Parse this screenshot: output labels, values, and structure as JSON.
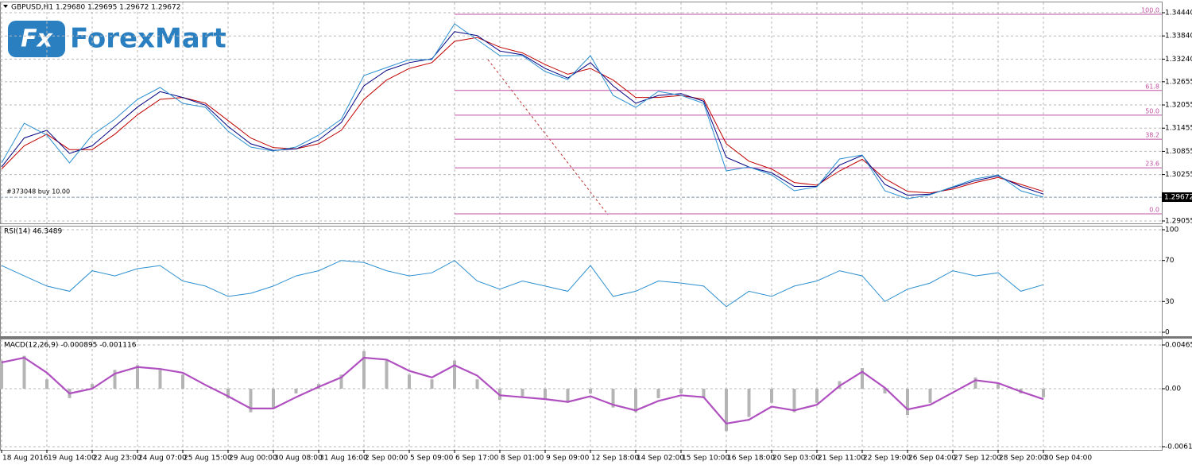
{
  "chart_data": [
    {
      "type": "line",
      "title": "GBPUSD,H1  1.29680 1.29695 1.29672 1.29672",
      "logo_icon": "Fx",
      "logo": "ForexMart",
      "series": [
        {
          "color": "#2b8fcf",
          "values": [
            1.30555,
            1.31583,
            1.31275,
            1.30555,
            1.31275,
            1.31686,
            1.322,
            1.32508,
            1.32097,
            1.31994,
            1.31377,
            1.30966,
            1.30863,
            1.30966,
            1.31275,
            1.31686,
            1.32816,
            1.33022,
            1.33227,
            1.33227,
            1.34152,
            1.33741,
            1.3333,
            1.3333,
            1.32919,
            1.32713,
            1.3333,
            1.32302,
            1.31994,
            1.32405,
            1.32302,
            1.32097,
            1.3035,
            1.30452,
            1.30247,
            1.29836,
            1.29938,
            1.30658,
            1.30761,
            1.29836,
            1.2963,
            1.29733,
            1.29938,
            1.30144,
            1.30247,
            1.29836,
            1.29672
          ]
        },
        {
          "color": "#000080",
          "values": [
            1.3045,
            1.312,
            1.314,
            1.308,
            1.31,
            1.315,
            1.32,
            1.324,
            1.3225,
            1.3205,
            1.315,
            1.3105,
            1.3088,
            1.3092,
            1.3115,
            1.316,
            1.3255,
            1.3295,
            1.3315,
            1.3325,
            1.3395,
            1.3385,
            1.3345,
            1.3335,
            1.33,
            1.3275,
            1.3315,
            1.3255,
            1.321,
            1.323,
            1.3235,
            1.3215,
            1.307,
            1.3045,
            1.303,
            1.2995,
            1.2995,
            1.305,
            1.3075,
            1.3,
            1.2972,
            1.2975,
            1.2992,
            1.301,
            1.3022,
            1.2995,
            1.2975
          ]
        },
        {
          "color": "#c00000",
          "values": [
            1.304,
            1.31,
            1.313,
            1.309,
            1.309,
            1.313,
            1.318,
            1.322,
            1.3225,
            1.321,
            1.3165,
            1.312,
            1.3095,
            1.3092,
            1.3105,
            1.314,
            1.322,
            1.327,
            1.33,
            1.3315,
            1.337,
            1.338,
            1.3355,
            1.334,
            1.331,
            1.3285,
            1.33,
            1.327,
            1.3225,
            1.3225,
            1.323,
            1.322,
            1.3105,
            1.306,
            1.304,
            1.3005,
            1.2998,
            1.3035,
            1.3065,
            1.3015,
            1.2982,
            1.2978,
            1.2988,
            1.3005,
            1.3018,
            1.3,
            1.2982
          ]
        }
      ],
      "ylim": [
        1.29055,
        1.3444
      ],
      "yticks": [
        {
          "value": 1.3444,
          "label": "1.34440"
        },
        {
          "value": 1.3384,
          "label": "1.33840"
        },
        {
          "value": 1.3324,
          "label": "1.33240"
        },
        1.32655,
        1.32055,
        1.31455,
        1.30855,
        1.30255,
        1.29055
      ],
      "grid": true,
      "fibonacci": {
        "color": "#c04fa0",
        "levels": [
          {
            "label": "100.0",
            "price": 1.344
          },
          {
            "label": "61.8",
            "price": 1.3243
          },
          {
            "label": "50.0",
            "price": 1.3179
          },
          {
            "label": "38.2",
            "price": 1.3117
          },
          {
            "label": "23.6",
            "price": 1.3043
          },
          {
            "label": "0.0",
            "price": 1.2924
          }
        ]
      },
      "order": {
        "label": "#373048 buy 10.00",
        "price": 1.2967
      },
      "last_price": 1.29672
    },
    {
      "type": "line",
      "title": "RSI(14) 46.3489",
      "series": [
        {
          "color": "#2b8fcf",
          "values": [
            65,
            55,
            45,
            40,
            60,
            55,
            62,
            65,
            50,
            45,
            35,
            38,
            45,
            55,
            60,
            70,
            68,
            60,
            55,
            58,
            70,
            50,
            42,
            50,
            45,
            40,
            65,
            35,
            40,
            50,
            48,
            45,
            25,
            40,
            35,
            45,
            50,
            60,
            55,
            30,
            42,
            48,
            60,
            55,
            58,
            40,
            46.3489
          ]
        }
      ],
      "ylim": [
        0,
        100
      ],
      "yticks": [
        0,
        30,
        70,
        100
      ],
      "grid": true
    },
    {
      "type": "bar",
      "title": "MACD(12,26,9) -0.000895 -0.001116",
      "categories": [
        "18 Aug 2016",
        null,
        "19 Aug 14:00",
        null,
        "22 Aug 23:00",
        null,
        "24 Aug 07:00",
        null,
        "25 Aug 15:00",
        null,
        "29 Aug 00:00",
        null,
        "30 Aug 08:00",
        null,
        "31 Aug 16:00",
        null,
        "2 Sep 00:00",
        null,
        "5 Sep 09:00",
        null,
        "6 Sep 17:00",
        null,
        "8 Sep 01:00",
        null,
        "9 Sep 09:00",
        null,
        "12 Sep 18:00",
        null,
        "14 Sep 02:00",
        null,
        "15 Sep 10:00",
        null,
        "16 Sep 18:00",
        null,
        "20 Sep 03:00",
        null,
        "21 Sep 11:00",
        null,
        "22 Sep 19:00",
        null,
        "26 Sep 04:00",
        null,
        "27 Sep 12:00",
        null,
        "28 Sep 20:00",
        null,
        "30 Sep 04:00"
      ],
      "series": [
        {
          "color": "#b4b4b4",
          "style": "bar",
          "values": [
            0.003,
            0.0035,
            0.001,
            -0.001,
            0.0005,
            0.002,
            0.0025,
            0.002,
            0.0015,
            0.0,
            -0.001,
            -0.0025,
            -0.002,
            -0.0005,
            0.0005,
            0.0015,
            0.004,
            0.003,
            0.0015,
            0.001,
            0.003,
            0.001,
            -0.0012,
            -0.0008,
            -0.0012,
            -0.0015,
            -0.0005,
            -0.002,
            -0.0025,
            -0.001,
            -0.0005,
            -0.001,
            -0.0045,
            -0.003,
            -0.0015,
            -0.0025,
            -0.0015,
            0.0008,
            0.0022,
            -0.0005,
            -0.0028,
            -0.0015,
            0.0,
            0.0012,
            0.0005,
            -0.0005,
            -0.000895
          ]
        },
        {
          "color": "#b050c0",
          "style": "line",
          "values": [
            0.0028,
            0.0033,
            0.0017,
            -0.0005,
            0.0,
            0.0016,
            0.0023,
            0.0021,
            0.0017,
            0.0004,
            -0.0008,
            -0.0021,
            -0.0021,
            -0.0009,
            0.0002,
            0.0012,
            0.0033,
            0.0031,
            0.0019,
            0.0012,
            0.0025,
            0.0014,
            -0.0007,
            -0.0009,
            -0.0011,
            -0.0014,
            -0.0008,
            -0.0017,
            -0.0023,
            -0.0013,
            -0.0007,
            -0.0009,
            -0.0037,
            -0.0033,
            -0.0019,
            -0.0023,
            -0.0017,
            0.0003,
            0.0018,
            0.0001,
            -0.0022,
            -0.0017,
            -0.0004,
            0.0009,
            0.0006,
            -0.0003,
            -0.001116
          ]
        }
      ],
      "ylim": [
        -0.006165,
        0.004651
      ],
      "yticks": [
        -0.006165,
        {
          "value": 0,
          "label": "0.00"
        },
        0.004651
      ],
      "grid": true
    }
  ]
}
